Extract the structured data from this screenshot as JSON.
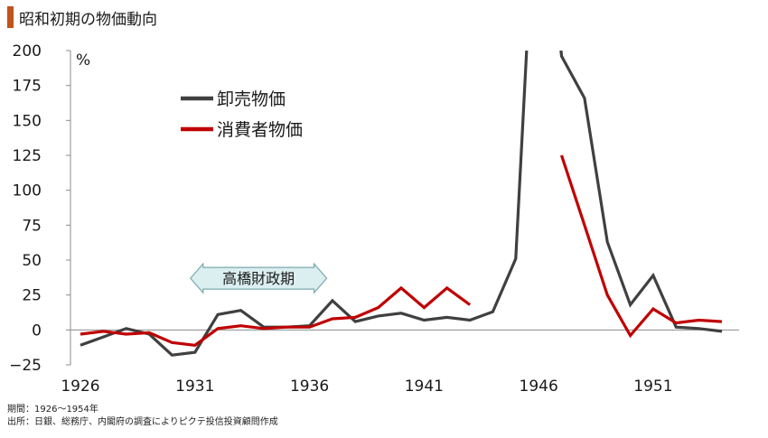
{
  "header": {
    "title": "昭和初期の物価動向",
    "accent_color": "#c0531b"
  },
  "chart_data": {
    "type": "line",
    "title": "昭和初期の物価動向",
    "unit_label": "%",
    "xlabel": "",
    "ylabel": "",
    "ylim": [
      -25,
      200
    ],
    "y_ticks": [
      -25,
      0,
      25,
      50,
      75,
      100,
      125,
      150,
      175,
      200
    ],
    "y_tick_labels": [
      "−25",
      "0",
      "25",
      "50",
      "75",
      "100",
      "125",
      "150",
      "175",
      "200"
    ],
    "x_ticks": [
      1926,
      1931,
      1936,
      1941,
      1946,
      1951
    ],
    "x_tick_labels": [
      "1926",
      "1931",
      "1936",
      "1941",
      "1946",
      "1951"
    ],
    "xlim": [
      1926,
      1954
    ],
    "grid": false,
    "legend_position": "top-left",
    "series": [
      {
        "name": "卸売物価",
        "color": "#404040",
        "points": [
          [
            1926,
            -11
          ],
          [
            1927,
            -5
          ],
          [
            1928,
            1
          ],
          [
            1929,
            -3
          ],
          [
            1930,
            -18
          ],
          [
            1931,
            -16
          ],
          [
            1932,
            11
          ],
          [
            1933,
            14
          ],
          [
            1934,
            2
          ],
          [
            1935,
            2
          ],
          [
            1936,
            3
          ],
          [
            1937,
            21
          ],
          [
            1938,
            6
          ],
          [
            1939,
            10
          ],
          [
            1940,
            12
          ],
          [
            1941,
            7
          ],
          [
            1942,
            9
          ],
          [
            1943,
            7
          ],
          [
            1944,
            13
          ],
          [
            1945,
            51
          ],
          [
            1946,
            364
          ],
          [
            1947,
            196
          ],
          [
            1948,
            166
          ],
          [
            1949,
            63
          ],
          [
            1950,
            18
          ],
          [
            1951,
            39
          ],
          [
            1952,
            2
          ],
          [
            1953,
            1
          ],
          [
            1954,
            -1
          ]
        ]
      },
      {
        "name": "消費者物価",
        "color": "#c00000",
        "points": [
          [
            1926,
            -3
          ],
          [
            1927,
            -1
          ],
          [
            1928,
            -3
          ],
          [
            1929,
            -2
          ],
          [
            1930,
            -9
          ],
          [
            1931,
            -11
          ],
          [
            1932,
            1
          ],
          [
            1933,
            3
          ],
          [
            1934,
            1
          ],
          [
            1935,
            2
          ],
          [
            1936,
            2
          ],
          [
            1937,
            8
          ],
          [
            1938,
            9
          ],
          [
            1939,
            16
          ],
          [
            1940,
            30
          ],
          [
            1941,
            16
          ],
          [
            1942,
            30
          ],
          [
            1943,
            18
          ],
          null,
          [
            1947,
            125
          ],
          [
            1948,
            75
          ],
          [
            1949,
            25
          ],
          [
            1950,
            -4
          ],
          [
            1951,
            15
          ],
          [
            1952,
            5
          ],
          [
            1953,
            7
          ],
          [
            1954,
            6
          ]
        ]
      }
    ],
    "annotation": {
      "text": "高橋財政期",
      "from": 1931,
      "to": 1936,
      "y": 37,
      "fill": "#dbeef0",
      "stroke": "#7aa9b0"
    }
  },
  "footer": {
    "period": "期間：1926～1954年",
    "source": "出所：日銀、総務庁、内閣府の調査によりピクテ投信投資顧問作成"
  }
}
